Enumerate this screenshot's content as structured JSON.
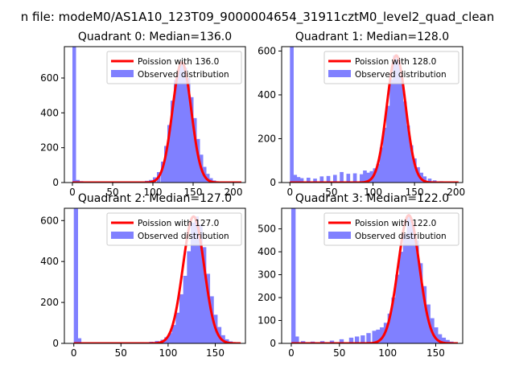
{
  "figure": {
    "suptitle": "n file: modeM0/AS1A10_123T09_9000004654_31911cztM0_level2_quad_clean"
  },
  "colors": {
    "hist": "#8080ff",
    "curve": "#ff0000",
    "axes": "#000000",
    "background": "#ffffff"
  },
  "chart_data": [
    {
      "type": "histogram",
      "title": "Quadrant 0: Median=136.0",
      "xlim": [
        -10,
        215
      ],
      "ylim": [
        0,
        780
      ],
      "xticks": [
        0,
        50,
        100,
        150,
        200
      ],
      "yticks": [
        0,
        200,
        400,
        600
      ],
      "median": 136.0,
      "legend": [
        "Poission with 136.0",
        "Observed distribution"
      ],
      "legend_position": "upper right",
      "hist_x": [
        0,
        4.5,
        9,
        40,
        60,
        80,
        90,
        95,
        100,
        105,
        110,
        114,
        118,
        122,
        126,
        130,
        134,
        138,
        142,
        146,
        150,
        154,
        158,
        162,
        166,
        170,
        174,
        178,
        185,
        195,
        205
      ],
      "hist_y": [
        780,
        15,
        8,
        4,
        4,
        6,
        10,
        15,
        30,
        60,
        120,
        210,
        330,
        470,
        590,
        650,
        690,
        660,
        600,
        490,
        370,
        250,
        160,
        90,
        50,
        25,
        12,
        6,
        3,
        2,
        1
      ]
    },
    {
      "type": "histogram",
      "title": "Quadrant 1: Median=128.0",
      "xlim": [
        -10,
        208
      ],
      "ylim": [
        0,
        620
      ],
      "xticks": [
        0,
        50,
        100,
        150,
        200
      ],
      "yticks": [
        0,
        200,
        400,
        600
      ],
      "median": 128.0,
      "legend": [
        "Poission with 128.0",
        "Observed distribution"
      ],
      "legend_position": "upper right",
      "hist_x": [
        0,
        4,
        8,
        12,
        20,
        28,
        36,
        44,
        52,
        60,
        68,
        76,
        84,
        88,
        92,
        96,
        100,
        104,
        108,
        112,
        116,
        120,
        124,
        128,
        132,
        136,
        140,
        144,
        148,
        152,
        156,
        160,
        166,
        172,
        180,
        190,
        200
      ],
      "hist_y": [
        620,
        35,
        25,
        20,
        22,
        18,
        28,
        30,
        35,
        48,
        40,
        42,
        38,
        55,
        45,
        52,
        65,
        85,
        160,
        250,
        350,
        470,
        580,
        560,
        480,
        370,
        260,
        170,
        110,
        70,
        45,
        28,
        18,
        10,
        6,
        3,
        1
      ]
    },
    {
      "type": "histogram",
      "title": "Quadrant 2: Median=127.0",
      "xlim": [
        -10,
        182
      ],
      "ylim": [
        0,
        660
      ],
      "xticks": [
        0,
        50,
        100,
        150
      ],
      "yticks": [
        0,
        200,
        400,
        600
      ],
      "median": 127.0,
      "legend": [
        "Poission with 127.0",
        "Observed distribution"
      ],
      "legend_position": "upper right",
      "hist_x": [
        0,
        3.5,
        20,
        40,
        60,
        70,
        80,
        86,
        92,
        96,
        100,
        104,
        108,
        112,
        116,
        120,
        124,
        128,
        132,
        136,
        140,
        144,
        148,
        152,
        156,
        160,
        164,
        168
      ],
      "hist_y": [
        660,
        25,
        3,
        4,
        5,
        6,
        8,
        12,
        18,
        30,
        50,
        90,
        150,
        240,
        330,
        450,
        590,
        620,
        580,
        470,
        340,
        230,
        140,
        80,
        40,
        20,
        10,
        5
      ]
    },
    {
      "type": "histogram",
      "title": "Quadrant 3: Median=122.0",
      "xlim": [
        -10,
        178
      ],
      "ylim": [
        0,
        590
      ],
      "xticks": [
        0,
        50,
        100,
        150
      ],
      "yticks": [
        0,
        100,
        200,
        300,
        400,
        500
      ],
      "median": 122.0,
      "legend": [
        "Poission with 122.0",
        "Observed distribution"
      ],
      "legend_position": "upper right",
      "hist_x": [
        0,
        3.5,
        10,
        20,
        30,
        40,
        50,
        60,
        66,
        72,
        78,
        84,
        88,
        92,
        96,
        100,
        104,
        108,
        112,
        116,
        120,
        124,
        128,
        132,
        136,
        140,
        144,
        148,
        152,
        156,
        160,
        164,
        168
      ],
      "hist_y": [
        590,
        30,
        10,
        8,
        10,
        12,
        18,
        25,
        30,
        35,
        45,
        55,
        60,
        70,
        90,
        130,
        200,
        300,
        400,
        480,
        560,
        520,
        450,
        350,
        250,
        170,
        110,
        70,
        40,
        25,
        15,
        8,
        4
      ]
    }
  ]
}
